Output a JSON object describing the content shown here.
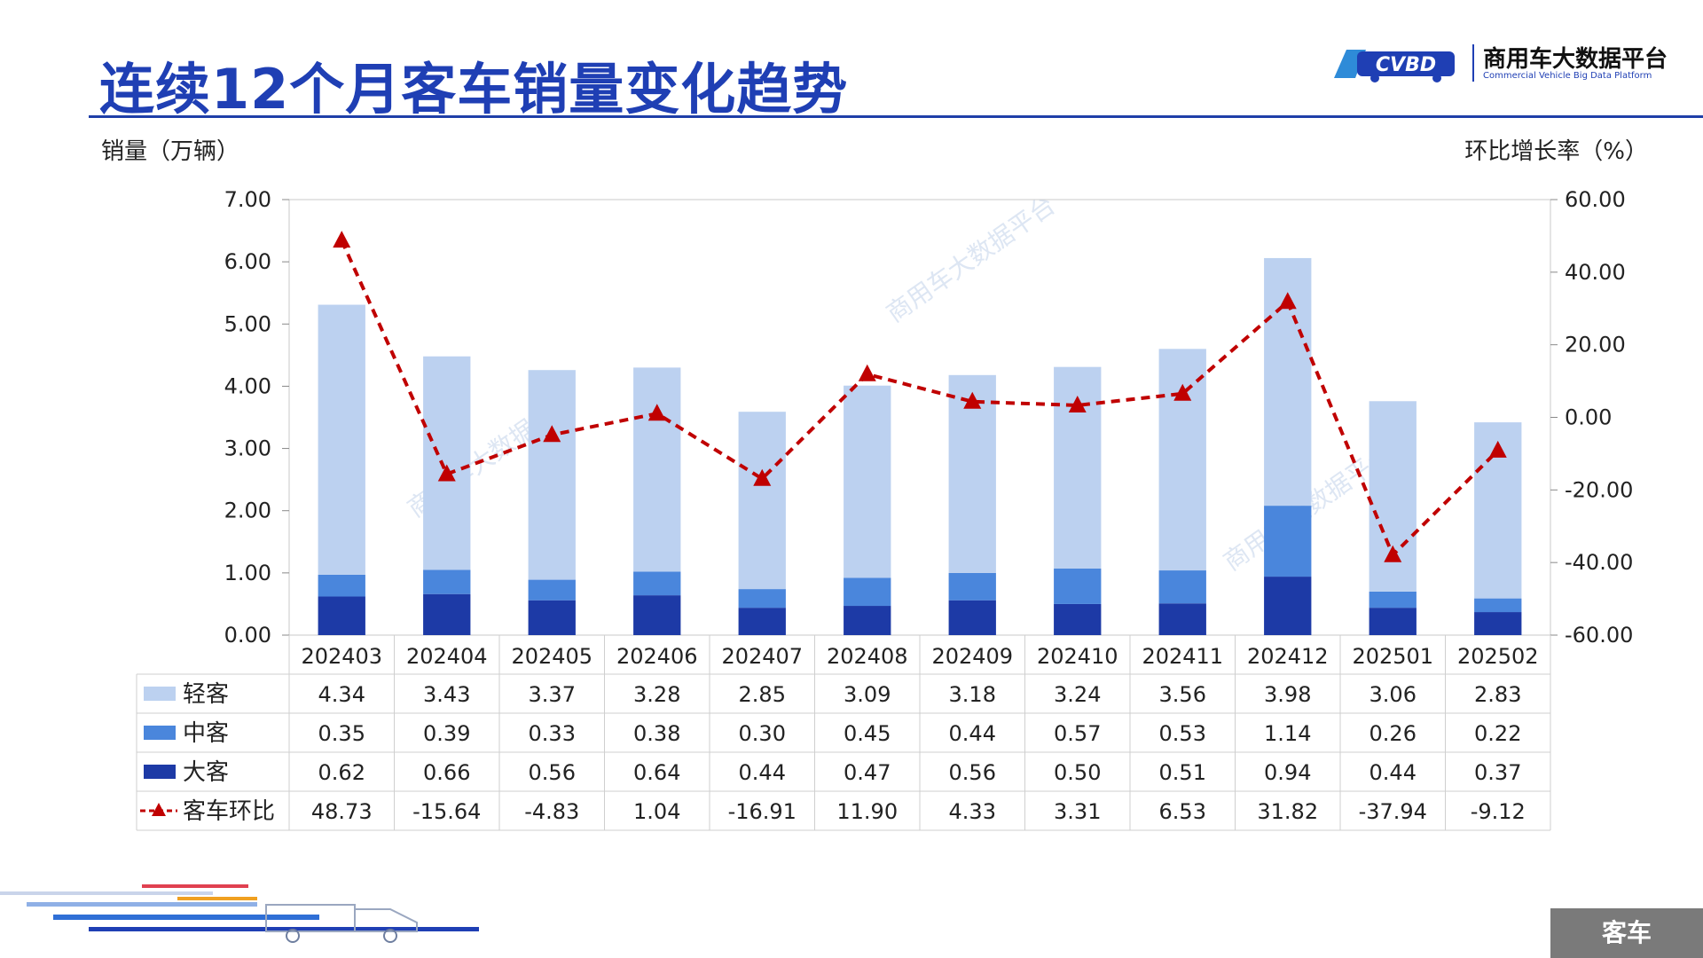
{
  "title": "连续12个月客车销量变化趋势",
  "logo": {
    "cn": "商用车大数据平台",
    "en": "Commercial Vehicle Big Data Platform",
    "mark": "CVBD"
  },
  "watermark": "商用车大数据平台",
  "left_axis_title": "销量（万辆）",
  "right_axis_title": "环比增长率（%）",
  "tag": "客车",
  "colors": {
    "light": "#bcd1f0",
    "medium": "#4a86dc",
    "heavy": "#1d3aa6",
    "line": "#c00000",
    "title": "#1f3fb4"
  },
  "chart_data": {
    "type": "bar",
    "stacked": true,
    "categories": [
      "202403",
      "202404",
      "202405",
      "202406",
      "202407",
      "202408",
      "202409",
      "202410",
      "202411",
      "202412",
      "202501",
      "202502"
    ],
    "series": [
      {
        "name": "大客",
        "values": [
          0.62,
          0.66,
          0.56,
          0.64,
          0.44,
          0.47,
          0.56,
          0.5,
          0.51,
          0.94,
          0.44,
          0.37
        ]
      },
      {
        "name": "中客",
        "values": [
          0.35,
          0.39,
          0.33,
          0.38,
          0.3,
          0.45,
          0.44,
          0.57,
          0.53,
          1.14,
          0.26,
          0.22
        ]
      },
      {
        "name": "轻客",
        "values": [
          4.34,
          3.43,
          3.37,
          3.28,
          2.85,
          3.09,
          3.18,
          3.24,
          3.56,
          3.98,
          3.06,
          2.83
        ]
      }
    ],
    "line_series": {
      "name": "客车环比",
      "axis": "right",
      "values": [
        48.73,
        -15.64,
        -4.83,
        1.04,
        -16.91,
        11.9,
        4.33,
        3.31,
        6.53,
        31.82,
        -37.94,
        -9.12
      ]
    },
    "ylim_left": [
      0,
      7
    ],
    "left_ticks": [
      "0.00",
      "1.00",
      "2.00",
      "3.00",
      "4.00",
      "5.00",
      "6.00",
      "7.00"
    ],
    "ylim_right": [
      -60,
      60
    ],
    "right_ticks": [
      "-60.00",
      "-40.00",
      "-20.00",
      "0.00",
      "20.00",
      "40.00",
      "60.00"
    ],
    "table_rows": [
      {
        "name": "轻客",
        "values": [
          "4.34",
          "3.43",
          "3.37",
          "3.28",
          "2.85",
          "3.09",
          "3.18",
          "3.24",
          "3.56",
          "3.98",
          "3.06",
          "2.83"
        ]
      },
      {
        "name": "中客",
        "values": [
          "0.35",
          "0.39",
          "0.33",
          "0.38",
          "0.30",
          "0.45",
          "0.44",
          "0.57",
          "0.53",
          "1.14",
          "0.26",
          "0.22"
        ]
      },
      {
        "name": "大客",
        "values": [
          "0.62",
          "0.66",
          "0.56",
          "0.64",
          "0.44",
          "0.47",
          "0.56",
          "0.50",
          "0.51",
          "0.94",
          "0.44",
          "0.37"
        ]
      },
      {
        "name": "客车环比",
        "values": [
          "48.73",
          "-15.64",
          "-4.83",
          "1.04",
          "-16.91",
          "11.90",
          "4.33",
          "3.31",
          "6.53",
          "31.82",
          "-37.94",
          "-9.12"
        ]
      }
    ]
  }
}
